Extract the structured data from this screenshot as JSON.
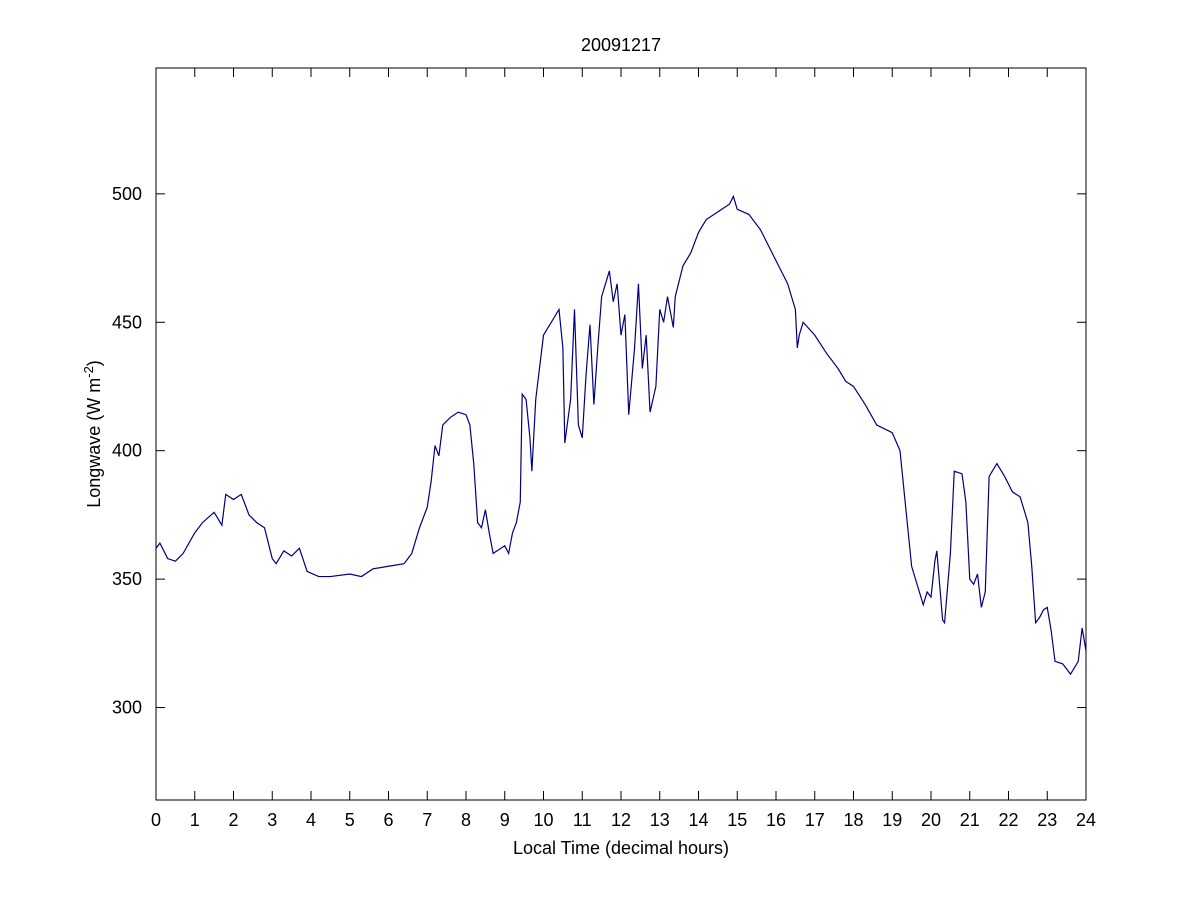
{
  "chart_data": {
    "type": "line",
    "title": "20091217",
    "xlabel": "Local Time (decimal hours)",
    "ylabel": [
      "Longwave (W m",
      "-2",
      ")"
    ],
    "xlim": [
      0,
      24
    ],
    "ylim": [
      264,
      549
    ],
    "xticks": [
      0,
      1,
      2,
      3,
      4,
      5,
      6,
      7,
      8,
      9,
      10,
      11,
      12,
      13,
      14,
      15,
      16,
      17,
      18,
      19,
      20,
      21,
      22,
      23,
      24
    ],
    "yticks": [
      300,
      350,
      400,
      450,
      500
    ],
    "series": [
      {
        "color": "#000080",
        "x": [
          0,
          0.1,
          0.3,
          0.5,
          0.7,
          1.0,
          1.2,
          1.5,
          1.7,
          1.8,
          2.0,
          2.2,
          2.4,
          2.6,
          2.8,
          3.0,
          3.1,
          3.3,
          3.5,
          3.7,
          3.9,
          4.2,
          4.5,
          5.0,
          5.3,
          5.6,
          6.0,
          6.4,
          6.6,
          6.8,
          7.0,
          7.1,
          7.2,
          7.3,
          7.4,
          7.6,
          7.8,
          8.0,
          8.1,
          8.2,
          8.3,
          8.4,
          8.5,
          8.6,
          8.7,
          8.8,
          9.0,
          9.1,
          9.2,
          9.3,
          9.4,
          9.45,
          9.55,
          9.65,
          9.7,
          9.8,
          10.0,
          10.2,
          10.4,
          10.5,
          10.55,
          10.7,
          10.8,
          10.9,
          11.0,
          11.1,
          11.2,
          11.3,
          11.4,
          11.5,
          11.7,
          11.8,
          11.9,
          12.0,
          12.1,
          12.2,
          12.35,
          12.45,
          12.55,
          12.65,
          12.75,
          12.9,
          13.0,
          13.1,
          13.2,
          13.35,
          13.4,
          13.6,
          13.8,
          14.0,
          14.2,
          14.5,
          14.8,
          14.9,
          15.0,
          15.3,
          15.6,
          16.0,
          16.3,
          16.5,
          16.55,
          16.6,
          16.7,
          17.0,
          17.3,
          17.6,
          17.8,
          18.0,
          18.3,
          18.6,
          19.0,
          19.2,
          19.4,
          19.5,
          19.6,
          19.8,
          19.9,
          20.0,
          20.1,
          20.15,
          20.3,
          20.35,
          20.5,
          20.6,
          20.8,
          20.9,
          21.0,
          21.1,
          21.2,
          21.3,
          21.4,
          21.5,
          21.7,
          21.9,
          22.1,
          22.3,
          22.5,
          22.6,
          22.7,
          22.8,
          22.9,
          23.0,
          23.1,
          23.2,
          23.4,
          23.6,
          23.8,
          23.9,
          24.0
        ],
        "values": [
          362,
          364,
          358,
          357,
          360,
          368,
          372,
          376,
          371,
          383,
          381,
          383,
          375,
          372,
          370,
          358,
          356,
          361,
          359,
          362,
          353,
          351,
          351,
          352,
          351,
          354,
          355,
          356,
          360,
          370,
          378,
          388,
          402,
          398,
          410,
          413,
          415,
          414,
          410,
          395,
          372,
          370,
          377,
          368,
          360,
          361,
          363,
          360,
          368,
          372,
          380,
          422,
          420,
          405,
          392,
          420,
          445,
          450,
          455,
          440,
          403,
          420,
          455,
          410,
          405,
          430,
          449,
          418,
          440,
          460,
          470,
          458,
          465,
          445,
          453,
          414,
          440,
          465,
          432,
          445,
          415,
          425,
          455,
          450,
          460,
          448,
          460,
          472,
          477,
          485,
          490,
          493,
          496,
          499,
          494,
          492,
          486,
          474,
          465,
          455,
          440,
          445,
          450,
          445,
          438,
          432,
          427,
          425,
          418,
          410,
          407,
          400,
          370,
          355,
          350,
          340,
          345,
          343,
          357,
          361,
          334,
          333,
          360,
          392,
          391,
          380,
          350,
          348,
          352,
          339,
          345,
          390,
          395,
          390,
          384,
          382,
          372,
          355,
          333,
          335,
          338,
          339,
          330,
          318,
          317,
          313,
          318,
          331,
          322
        ]
      }
    ]
  }
}
